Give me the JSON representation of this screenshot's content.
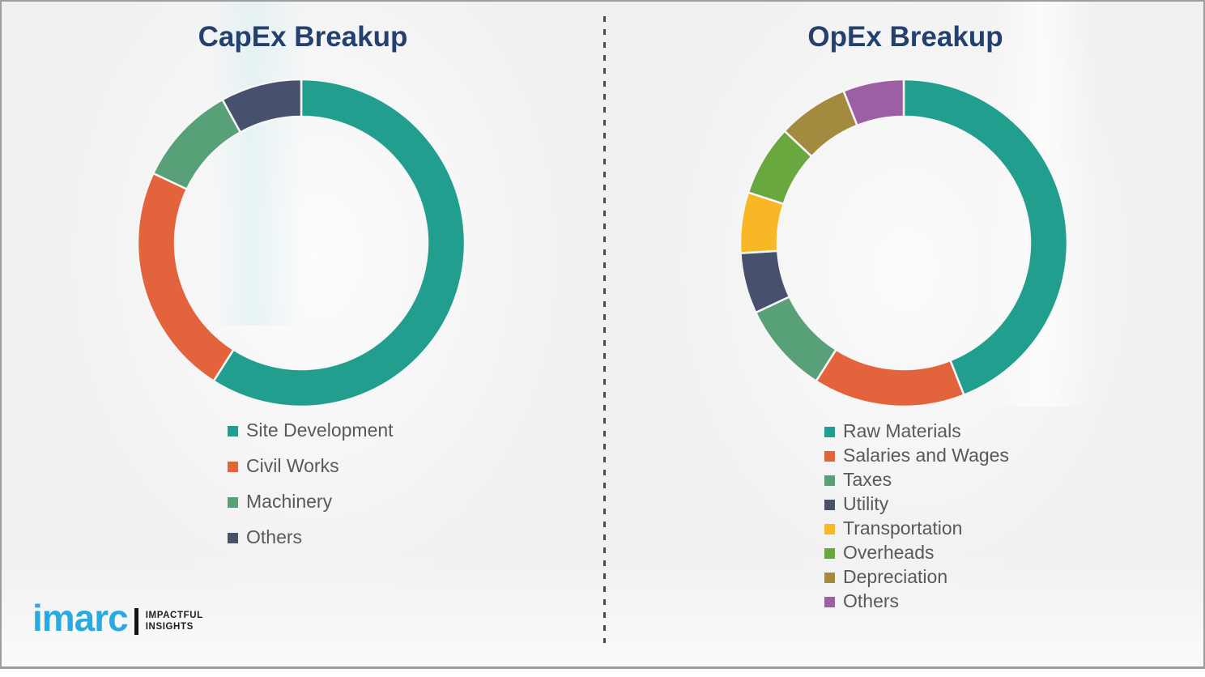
{
  "page": {
    "background_color": "#F0F0F1",
    "border_color": "#9D9D9D",
    "divider_color": "#4A4A4A",
    "title_color": "#24406E",
    "legend_text_color": "#595959"
  },
  "chart_data": [
    {
      "type": "pie",
      "subtype": "donut",
      "title": "CapEx Breakup",
      "categories": [
        "Site Development",
        "Civil Works",
        "Machinery",
        "Others"
      ],
      "values": [
        59,
        23,
        10,
        8
      ],
      "values_note": "percent shares estimated from arc angles; no numeric labels shown in image",
      "colors": [
        "#229E8F",
        "#E2633C",
        "#58A178",
        "#47506D"
      ],
      "start_angle_deg": 0,
      "direction": "clockwise",
      "legend_position": "below-chart-left",
      "legend_entries": [
        "Site Development",
        "Civil Works",
        "Machinery",
        "Others"
      ]
    },
    {
      "type": "pie",
      "subtype": "donut",
      "title": "OpEx Breakup",
      "categories": [
        "Raw Materials",
        "Salaries and Wages",
        "Taxes",
        "Utility",
        "Transportation",
        "Overheads",
        "Depreciation",
        "Others"
      ],
      "values": [
        44,
        15,
        9,
        6,
        6,
        7,
        7,
        6
      ],
      "values_note": "percent shares estimated from arc angles; no numeric labels shown in image",
      "colors": [
        "#229E8F",
        "#E2633C",
        "#58A178",
        "#47506D",
        "#F8B826",
        "#68A83F",
        "#A48A3E",
        "#9C5FA3"
      ],
      "start_angle_deg": 0,
      "direction": "clockwise",
      "legend_position": "below-chart-left",
      "legend_entries": [
        "Raw Materials",
        "Salaries and Wages",
        "Taxes",
        "Utility",
        "Transportation",
        "Overheads",
        "Depreciation",
        "Others"
      ]
    }
  ],
  "logo": {
    "brand": "imarc",
    "tagline_line1": "IMPACTFUL",
    "tagline_line2": "INSIGHTS",
    "brand_color": "#29ABE2",
    "bar_color": "#141414"
  }
}
